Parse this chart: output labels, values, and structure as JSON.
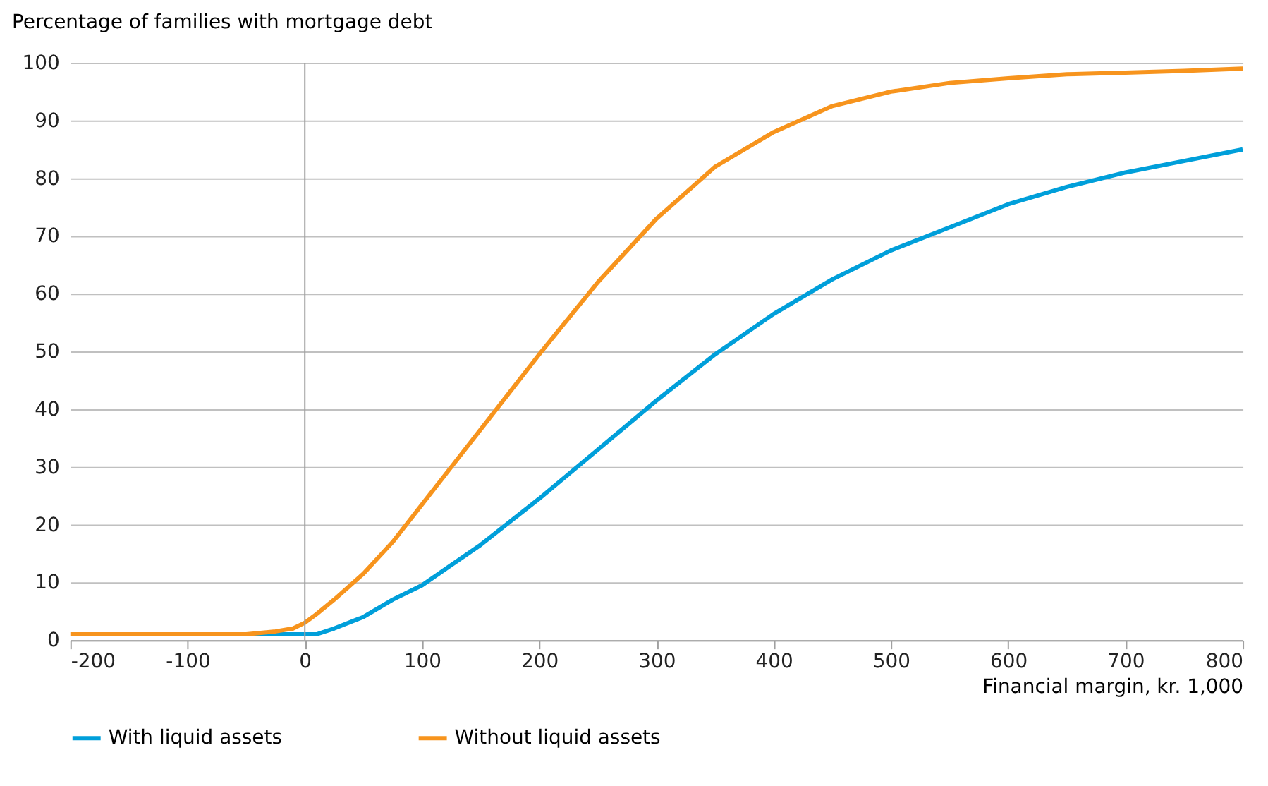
{
  "chart_data": {
    "type": "line",
    "ylabel": "Percentage of families with mortgage debt",
    "xlabel": "Financial margin, kr. 1,000",
    "series": [
      {
        "name": "With liquid assets",
        "color": "#009fda",
        "x": [
          -50,
          0,
          10,
          25,
          50,
          75,
          100,
          125,
          150,
          175,
          200,
          250,
          300,
          350,
          400,
          450,
          500,
          550,
          600,
          650,
          700,
          750,
          800
        ],
        "values": [
          1,
          1,
          1,
          2,
          4,
          7,
          9.5,
          13,
          16.5,
          20.5,
          24.5,
          33,
          41.5,
          49.5,
          56.5,
          62.5,
          67.5,
          71.5,
          75.5,
          78.5,
          81,
          83,
          85
        ]
      },
      {
        "name": "Without liquid assets",
        "color": "#f7941d",
        "x": [
          -200,
          -150,
          -100,
          -50,
          -25,
          -10,
          0,
          10,
          25,
          50,
          75,
          100,
          125,
          150,
          175,
          200,
          250,
          300,
          350,
          400,
          450,
          500,
          550,
          600,
          650,
          700,
          750,
          800
        ],
        "values": [
          1,
          1,
          1,
          1,
          1.5,
          2,
          3,
          4.5,
          7,
          11.5,
          17,
          23.5,
          30,
          36.5,
          43,
          49.5,
          62,
          73,
          82,
          88,
          92.5,
          95,
          96.5,
          97.3,
          98,
          98.3,
          98.6,
          99
        ]
      }
    ],
    "xlim": [
      -200,
      800
    ],
    "xticks": [
      -200,
      -100,
      0,
      100,
      200,
      300,
      400,
      500,
      600,
      700,
      800
    ],
    "ylim": [
      0,
      100
    ],
    "yticks": [
      0,
      10,
      20,
      30,
      40,
      50,
      60,
      70,
      80,
      90,
      100
    ],
    "ref_lines": [
      {
        "axis": "x",
        "value": 0,
        "color": "#a0a0a0"
      }
    ],
    "grid": "y",
    "legend": "bottom",
    "marker": "none",
    "line_style": "solid"
  }
}
